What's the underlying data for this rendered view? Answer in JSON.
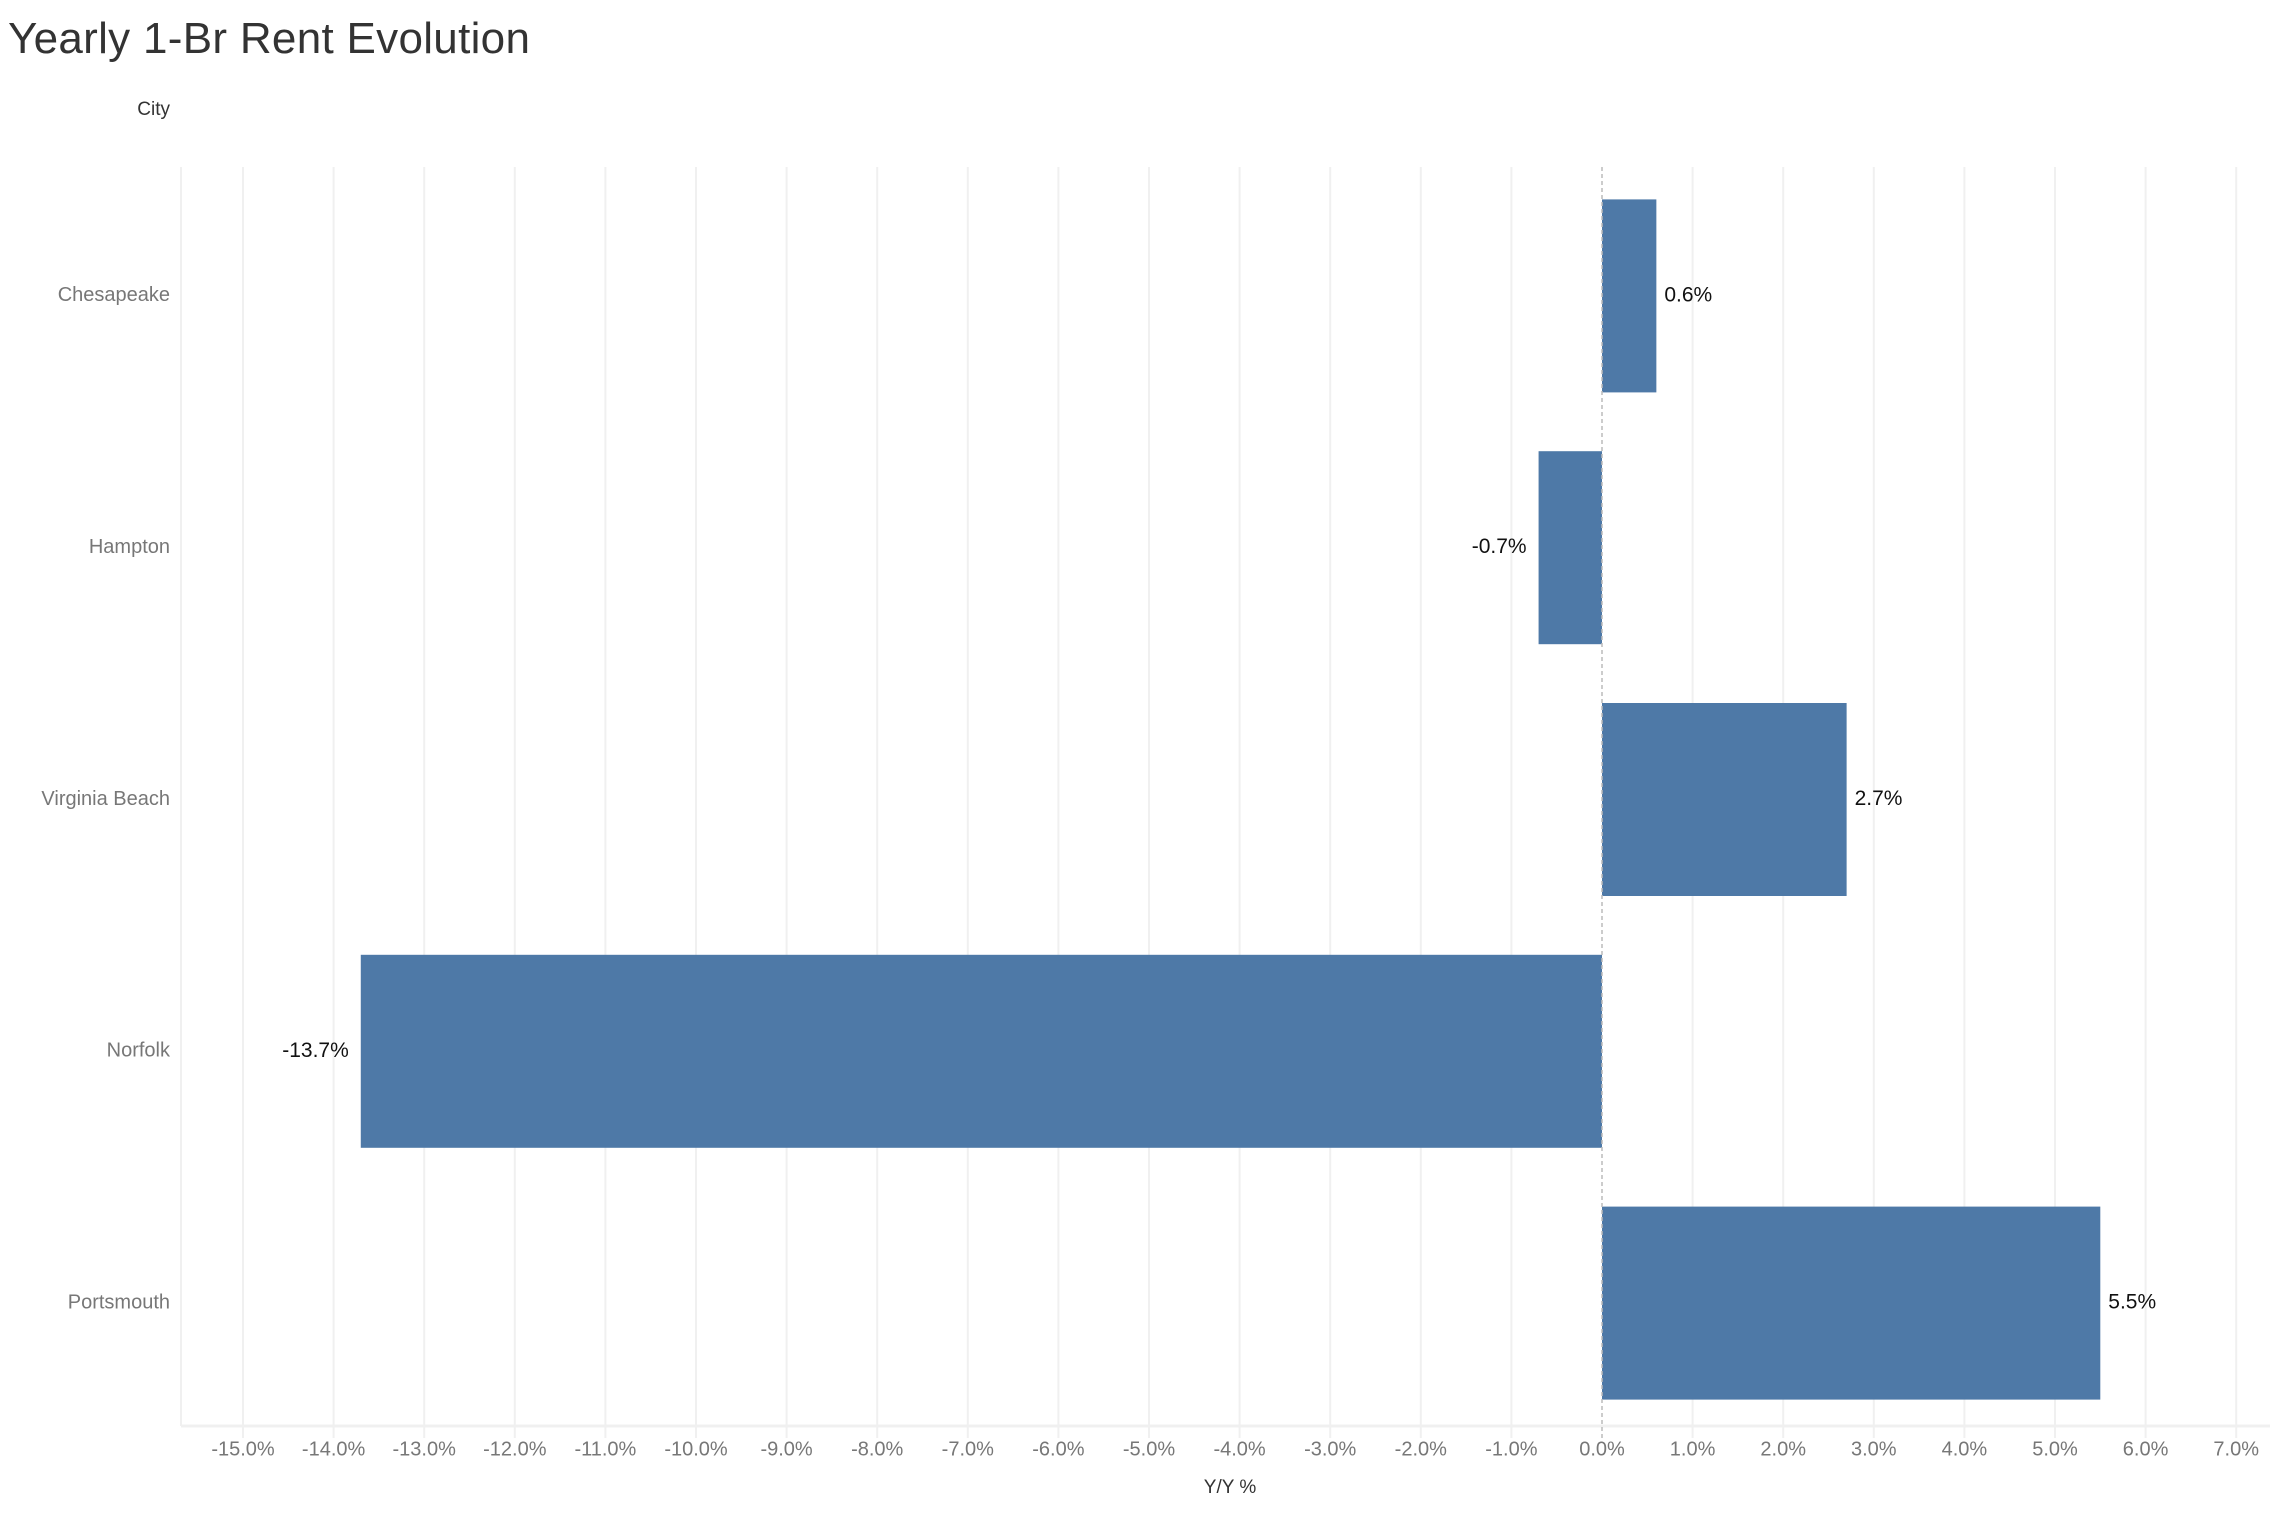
{
  "chart_data": {
    "type": "bar",
    "orientation": "horizontal",
    "title": "Yearly 1-Br Rent Evolution",
    "ylabel": "City",
    "xlabel": "Y/Y %",
    "categories": [
      "Chesapeake",
      "Hampton",
      "Virginia Beach",
      "Norfolk",
      "Portsmouth"
    ],
    "values": [
      0.6,
      -0.7,
      2.7,
      -13.7,
      5.5
    ],
    "data_labels": [
      "0.6%",
      "-0.7%",
      "2.7%",
      "-13.7%",
      "5.5%"
    ],
    "xlim": [
      -15.7,
      7.4
    ],
    "xticks": [
      -15,
      -14,
      -13,
      -12,
      -11,
      -10,
      -9,
      -8,
      -7,
      -6,
      -5,
      -4,
      -3,
      -2,
      -1,
      0,
      1,
      2,
      3,
      4,
      5,
      6,
      7
    ],
    "xtick_labels": [
      "-15.0%",
      "-14.0%",
      "-13.0%",
      "-12.0%",
      "-11.0%",
      "-10.0%",
      "-9.0%",
      "-8.0%",
      "-7.0%",
      "-6.0%",
      "-5.0%",
      "-4.0%",
      "-3.0%",
      "-2.0%",
      "-1.0%",
      "0.0%",
      "1.0%",
      "2.0%",
      "3.0%",
      "4.0%",
      "5.0%",
      "6.0%",
      "7.0%"
    ],
    "grid": true,
    "bar_color": "#4e79a7"
  }
}
